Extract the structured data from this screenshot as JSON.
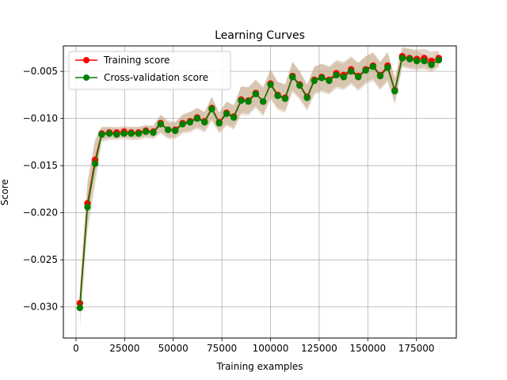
{
  "chart_data": {
    "type": "line",
    "title": "Learning Curves",
    "xlabel": "Training examples",
    "ylabel": "Score",
    "xlim": [
      -6500,
      195500
    ],
    "ylim": [
      -0.0333,
      -0.0023
    ],
    "xticks": [
      0,
      25000,
      50000,
      75000,
      100000,
      125000,
      150000,
      175000
    ],
    "xtick_labels": [
      "0",
      "25000",
      "50000",
      "75000",
      "100000",
      "125000",
      "150000",
      "175000"
    ],
    "yticks": [
      -0.03,
      -0.025,
      -0.02,
      -0.015,
      -0.01,
      -0.005
    ],
    "ytick_labels": [
      "−0.030",
      "−0.025",
      "−0.020",
      "−0.015",
      "−0.010",
      "−0.005"
    ],
    "grid": true,
    "legend_position": "top-left",
    "x": [
      2000,
      5900,
      9800,
      13200,
      17100,
      20900,
      24700,
      28400,
      32200,
      35900,
      39700,
      43500,
      47300,
      51000,
      54800,
      58600,
      62300,
      66100,
      69800,
      73600,
      77400,
      81100,
      84900,
      88600,
      92400,
      96200,
      100000,
      103700,
      107500,
      111300,
      115000,
      118800,
      122500,
      126300,
      130100,
      133800,
      137600,
      141400,
      145100,
      148900,
      152700,
      156400,
      160200,
      163900,
      167700,
      171500,
      175200,
      179000,
      182700,
      186500
    ],
    "series": [
      {
        "name": "Training score",
        "color": "#ff0000",
        "values": [
          -0.0296,
          -0.019,
          -0.0144,
          -0.0116,
          -0.0115,
          -0.0115,
          -0.0114,
          -0.0115,
          -0.0115,
          -0.0113,
          -0.0114,
          -0.0105,
          -0.0112,
          -0.0112,
          -0.0105,
          -0.0103,
          -0.0099,
          -0.0103,
          -0.0089,
          -0.0104,
          -0.0094,
          -0.0098,
          -0.008,
          -0.0081,
          -0.0073,
          -0.0082,
          -0.0063,
          -0.0075,
          -0.0078,
          -0.0055,
          -0.0064,
          -0.0077,
          -0.0059,
          -0.0056,
          -0.0059,
          -0.0052,
          -0.0054,
          -0.0048,
          -0.0055,
          -0.0048,
          -0.0044,
          -0.0054,
          -0.0044,
          -0.007,
          -0.0034,
          -0.0036,
          -0.0037,
          -0.0036,
          -0.0039,
          -0.0036
        ],
        "band_lower": [
          -0.0307,
          -0.0212,
          -0.0162,
          -0.0123,
          -0.0121,
          -0.0121,
          -0.012,
          -0.0121,
          -0.0121,
          -0.0119,
          -0.012,
          -0.0114,
          -0.012,
          -0.012,
          -0.0114,
          -0.0113,
          -0.0109,
          -0.0113,
          -0.0101,
          -0.0114,
          -0.0106,
          -0.011,
          -0.0094,
          -0.0095,
          -0.0087,
          -0.0096,
          -0.0078,
          -0.0089,
          -0.0092,
          -0.007,
          -0.0078,
          -0.009,
          -0.0073,
          -0.007,
          -0.0073,
          -0.0066,
          -0.0068,
          -0.0062,
          -0.0069,
          -0.0062,
          -0.0058,
          -0.0068,
          -0.0059,
          -0.0083,
          -0.0044,
          -0.0046,
          -0.0047,
          -0.0046,
          -0.0049,
          -0.0044
        ],
        "band_upper": [
          -0.0283,
          -0.0168,
          -0.0122,
          -0.0109,
          -0.0109,
          -0.0109,
          -0.0108,
          -0.0109,
          -0.0109,
          -0.0107,
          -0.0108,
          -0.0096,
          -0.0104,
          -0.0104,
          -0.0096,
          -0.0093,
          -0.0089,
          -0.0093,
          -0.0077,
          -0.0094,
          -0.0082,
          -0.0086,
          -0.0066,
          -0.0067,
          -0.0059,
          -0.0068,
          -0.0048,
          -0.0061,
          -0.0064,
          -0.004,
          -0.005,
          -0.0064,
          -0.0045,
          -0.0042,
          -0.0045,
          -0.0038,
          -0.004,
          -0.0034,
          -0.0041,
          -0.0034,
          -0.003,
          -0.004,
          -0.0029,
          -0.0057,
          -0.0024,
          -0.0026,
          -0.0027,
          -0.0026,
          -0.0029,
          -0.0028
        ]
      },
      {
        "name": "Cross-validation score",
        "color": "#008000",
        "values": [
          -0.0301,
          -0.0194,
          -0.0148,
          -0.0117,
          -0.0116,
          -0.0117,
          -0.0116,
          -0.0116,
          -0.0116,
          -0.0114,
          -0.0115,
          -0.0106,
          -0.0112,
          -0.0113,
          -0.0106,
          -0.0104,
          -0.01,
          -0.0104,
          -0.009,
          -0.0105,
          -0.0095,
          -0.0099,
          -0.0081,
          -0.0082,
          -0.0074,
          -0.0082,
          -0.0064,
          -0.0076,
          -0.0079,
          -0.0056,
          -0.0065,
          -0.0078,
          -0.006,
          -0.0057,
          -0.006,
          -0.0054,
          -0.0056,
          -0.005,
          -0.0056,
          -0.0049,
          -0.0045,
          -0.0055,
          -0.0046,
          -0.0071,
          -0.0036,
          -0.0037,
          -0.0039,
          -0.0039,
          -0.0043,
          -0.0038
        ],
        "band_lower": [
          -0.0323,
          -0.0221,
          -0.0172,
          -0.0125,
          -0.0123,
          -0.0123,
          -0.0122,
          -0.0123,
          -0.0123,
          -0.0121,
          -0.0122,
          -0.0116,
          -0.0122,
          -0.0122,
          -0.0116,
          -0.0115,
          -0.0111,
          -0.0115,
          -0.0103,
          -0.0116,
          -0.0108,
          -0.0112,
          -0.0096,
          -0.0097,
          -0.0089,
          -0.0098,
          -0.008,
          -0.0091,
          -0.0094,
          -0.0072,
          -0.008,
          -0.0092,
          -0.0075,
          -0.0072,
          -0.0075,
          -0.0068,
          -0.007,
          -0.0064,
          -0.0071,
          -0.0064,
          -0.006,
          -0.007,
          -0.0061,
          -0.0085,
          -0.0046,
          -0.0048,
          -0.0049,
          -0.0048,
          -0.0051,
          -0.0046
        ],
        "band_upper": [
          -0.0279,
          -0.0167,
          -0.0124,
          -0.0109,
          -0.0109,
          -0.0111,
          -0.011,
          -0.0109,
          -0.0109,
          -0.0107,
          -0.0108,
          -0.0096,
          -0.0102,
          -0.0104,
          -0.0096,
          -0.0093,
          -0.0089,
          -0.0093,
          -0.0077,
          -0.0094,
          -0.0082,
          -0.0086,
          -0.0066,
          -0.0067,
          -0.0059,
          -0.0066,
          -0.0048,
          -0.0061,
          -0.0064,
          -0.004,
          -0.005,
          -0.0064,
          -0.0045,
          -0.0042,
          -0.0045,
          -0.004,
          -0.0042,
          -0.0036,
          -0.0041,
          -0.0034,
          -0.003,
          -0.004,
          -0.0031,
          -0.0057,
          -0.0026,
          -0.0026,
          -0.0029,
          -0.0032,
          -0.0035,
          -0.003
        ]
      }
    ]
  },
  "colors": {
    "band": "#c2a585",
    "grid": "#b0b0b0"
  }
}
